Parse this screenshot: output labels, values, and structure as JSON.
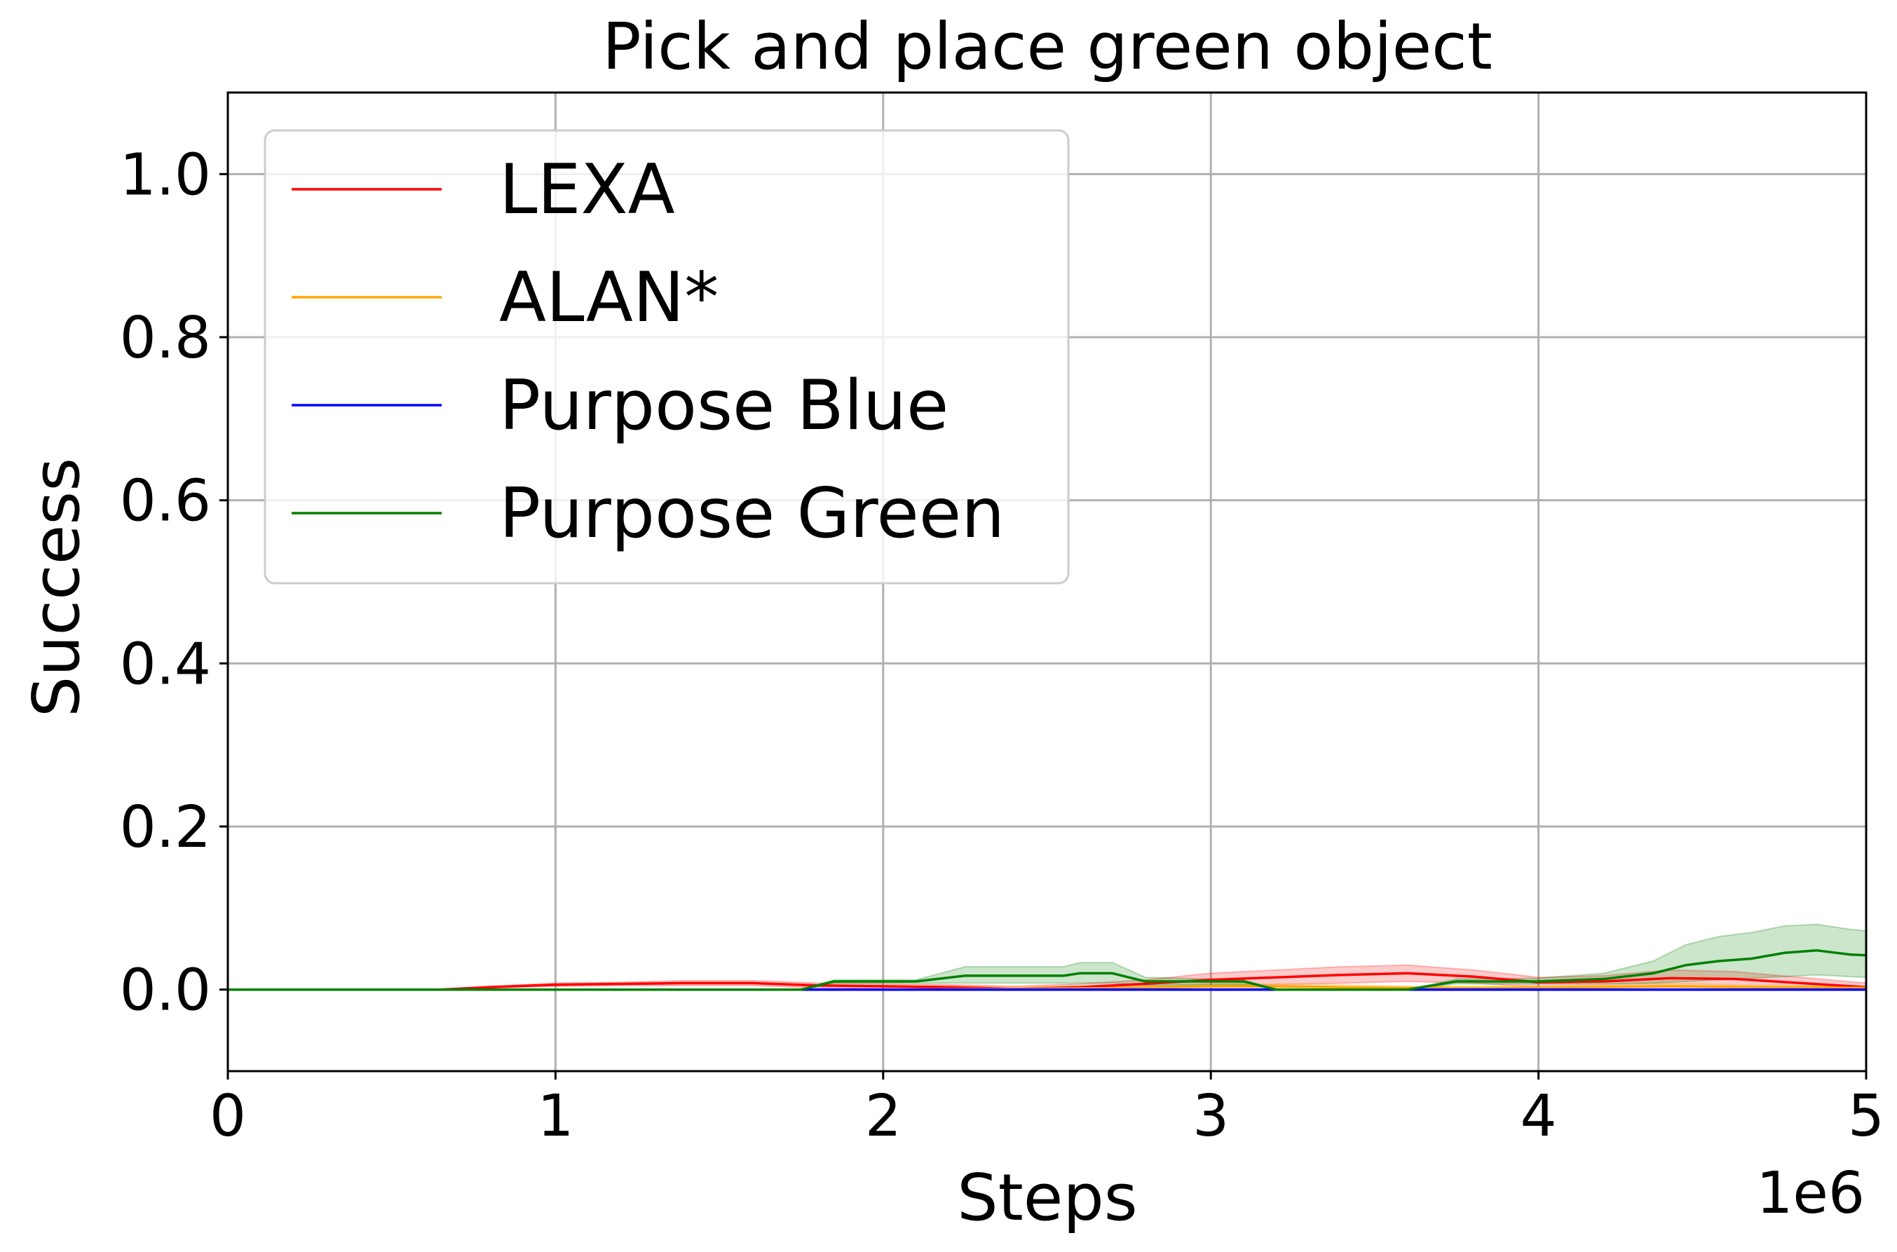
{
  "chart_data": {
    "type": "line",
    "title": "Pick and place green object",
    "xlabel": "Steps",
    "ylabel": "Success",
    "x_multiplier_label": "1e6",
    "xlim": [
      0,
      5000000
    ],
    "ylim": [
      -0.1,
      1.1
    ],
    "xticks": [
      0,
      1000000,
      2000000,
      3000000,
      4000000,
      5000000
    ],
    "xtick_labels": [
      "0",
      "1",
      "2",
      "3",
      "4",
      "5"
    ],
    "yticks": [
      0.0,
      0.2,
      0.4,
      0.6,
      0.8,
      1.0
    ],
    "ytick_labels": [
      "0.0",
      "0.2",
      "0.4",
      "0.6",
      "0.8",
      "1.0"
    ],
    "grid": true,
    "legend_position": "top-left",
    "series": [
      {
        "name": "LEXA",
        "color": "#ff0000",
        "x": [
          0,
          650000,
          800000,
          1000000,
          1200000,
          1400000,
          1600000,
          1800000,
          2000000,
          2200000,
          2400000,
          2600000,
          2800000,
          3000000,
          3200000,
          3400000,
          3600000,
          3800000,
          4000000,
          4200000,
          4400000,
          4600000,
          4800000,
          5000000
        ],
        "y": [
          0,
          0,
          0.003,
          0.006,
          0.007,
          0.008,
          0.008,
          0.005,
          0.004,
          0.003,
          0.001,
          0.003,
          0.007,
          0.012,
          0.015,
          0.018,
          0.02,
          0.016,
          0.009,
          0.01,
          0.014,
          0.013,
          0.008,
          0.003
        ],
        "upper": [
          0,
          0,
          0.004,
          0.008,
          0.009,
          0.011,
          0.011,
          0.008,
          0.007,
          0.006,
          0.004,
          0.007,
          0.012,
          0.02,
          0.024,
          0.028,
          0.03,
          0.024,
          0.015,
          0.017,
          0.024,
          0.022,
          0.015,
          0.008
        ],
        "lower": [
          0,
          0,
          0.002,
          0.004,
          0.005,
          0.005,
          0.005,
          0.002,
          0.001,
          0.0,
          0.0,
          0.0,
          0.002,
          0.004,
          0.006,
          0.008,
          0.01,
          0.008,
          0.003,
          0.003,
          0.004,
          0.004,
          0.001,
          0.0
        ]
      },
      {
        "name": "ALAN*",
        "color": "#ffa500",
        "x": [
          0,
          1000000,
          2000000,
          2800000,
          3000000,
          3200000,
          3400000,
          3600000,
          4000000,
          4400000,
          4600000,
          5000000
        ],
        "y": [
          0,
          0,
          0,
          0.002,
          0.004,
          0.004,
          0.003,
          0.002,
          0.002,
          0.004,
          0.003,
          0.002
        ],
        "upper": [
          0,
          0,
          0,
          0.004,
          0.007,
          0.007,
          0.006,
          0.004,
          0.004,
          0.008,
          0.006,
          0.004
        ],
        "lower": [
          0,
          0,
          0,
          0,
          0.001,
          0.001,
          0.0,
          0.0,
          0.0,
          0.0,
          0.0,
          0.0
        ]
      },
      {
        "name": "Purpose Blue",
        "color": "#0000ff",
        "x": [
          0,
          1000000,
          2000000,
          3000000,
          4000000,
          5000000
        ],
        "y": [
          0,
          0,
          0,
          0,
          0,
          0
        ]
      },
      {
        "name": "Purpose Green",
        "color": "#008000",
        "x": [
          0,
          1750000,
          1850000,
          2100000,
          2250000,
          2550000,
          2600000,
          2700000,
          2800000,
          3100000,
          3200000,
          3600000,
          3750000,
          4000000,
          4200000,
          4350000,
          4450000,
          4550000,
          4650000,
          4750000,
          4850000,
          4950000,
          5000000
        ],
        "y": [
          0,
          0,
          0.01,
          0.01,
          0.017,
          0.017,
          0.02,
          0.02,
          0.01,
          0.01,
          0,
          0,
          0.01,
          0.01,
          0.013,
          0.02,
          0.03,
          0.035,
          0.038,
          0.045,
          0.048,
          0.043,
          0.042
        ],
        "upper": [
          0,
          0,
          0.012,
          0.012,
          0.028,
          0.028,
          0.033,
          0.033,
          0.015,
          0.012,
          0,
          0,
          0.013,
          0.014,
          0.02,
          0.035,
          0.055,
          0.065,
          0.07,
          0.078,
          0.08,
          0.074,
          0.072
        ],
        "lower": [
          0,
          0,
          0.008,
          0.008,
          0.008,
          0.008,
          0.008,
          0.008,
          0.005,
          0.006,
          0,
          0,
          0.007,
          0.007,
          0.007,
          0.008,
          0.01,
          0.012,
          0.014,
          0.016,
          0.018,
          0.016,
          0.015
        ]
      }
    ]
  }
}
